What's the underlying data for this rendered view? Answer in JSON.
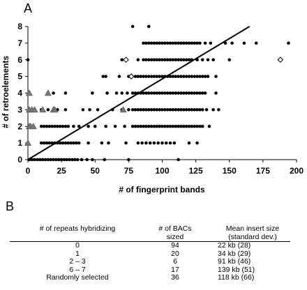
{
  "panel_a_label": "A",
  "panel_b_label": "B",
  "chart_data": {
    "type": "scatter",
    "xlabel": "# of fingerprint bands",
    "ylabel": "# of retroelements",
    "xlim": [
      0,
      200
    ],
    "ylim": [
      0,
      8
    ],
    "xticks": [
      "0",
      "25",
      "50",
      "75",
      "100",
      "125",
      "150",
      "175",
      "200"
    ],
    "yticks": [
      "0",
      "1",
      "2",
      "3",
      "4",
      "5",
      "6",
      "7",
      "8"
    ],
    "grid": false,
    "trendline": {
      "x": [
        0,
        165
      ],
      "y": [
        0,
        8
      ]
    },
    "series": [
      {
        "marker": "circle",
        "points": [
          [
            1,
            0
          ],
          [
            3,
            0
          ],
          [
            5,
            0
          ],
          [
            7,
            0
          ],
          [
            9,
            0
          ],
          [
            11,
            0
          ],
          [
            13,
            0
          ],
          [
            15,
            0
          ],
          [
            17,
            0
          ],
          [
            19,
            0
          ],
          [
            21,
            0
          ],
          [
            23,
            0
          ],
          [
            25,
            0
          ],
          [
            27,
            0
          ],
          [
            29,
            0
          ],
          [
            31,
            0
          ],
          [
            33,
            0
          ],
          [
            35,
            0
          ],
          [
            37,
            0
          ],
          [
            40,
            0
          ],
          [
            44,
            0
          ],
          [
            48,
            0
          ],
          [
            57,
            0
          ],
          [
            75,
            0
          ],
          [
            112,
            0
          ],
          [
            10,
            1
          ],
          [
            12,
            1
          ],
          [
            14,
            1
          ],
          [
            16,
            1
          ],
          [
            18,
            1
          ],
          [
            20,
            1
          ],
          [
            22,
            1
          ],
          [
            24,
            1
          ],
          [
            26,
            1
          ],
          [
            28,
            1
          ],
          [
            30,
            1
          ],
          [
            32,
            1
          ],
          [
            34,
            1
          ],
          [
            36,
            1
          ],
          [
            38,
            1
          ],
          [
            45,
            1
          ],
          [
            55,
            1
          ],
          [
            60,
            1
          ],
          [
            73,
            1
          ],
          [
            82,
            1
          ],
          [
            85,
            1
          ],
          [
            88,
            1
          ],
          [
            91,
            1
          ],
          [
            94,
            1
          ],
          [
            97,
            1
          ],
          [
            100,
            1
          ],
          [
            103,
            1
          ],
          [
            106,
            1
          ],
          [
            109,
            1
          ],
          [
            120,
            1
          ],
          [
            126,
            1
          ],
          [
            10,
            2
          ],
          [
            12,
            2
          ],
          [
            14,
            2
          ],
          [
            16,
            2
          ],
          [
            18,
            2
          ],
          [
            20,
            2
          ],
          [
            22,
            2
          ],
          [
            24,
            2
          ],
          [
            26,
            2
          ],
          [
            28,
            2
          ],
          [
            30,
            2
          ],
          [
            34,
            2
          ],
          [
            38,
            2
          ],
          [
            45,
            2
          ],
          [
            50,
            2
          ],
          [
            58,
            2
          ],
          [
            65,
            2
          ],
          [
            72,
            2
          ],
          [
            78,
            2
          ],
          [
            80,
            2
          ],
          [
            82,
            2
          ],
          [
            84,
            2
          ],
          [
            86,
            2
          ],
          [
            88,
            2
          ],
          [
            90,
            2
          ],
          [
            92,
            2
          ],
          [
            94,
            2
          ],
          [
            96,
            2
          ],
          [
            98,
            2
          ],
          [
            100,
            2
          ],
          [
            102,
            2
          ],
          [
            104,
            2
          ],
          [
            106,
            2
          ],
          [
            108,
            2
          ],
          [
            110,
            2
          ],
          [
            112,
            2
          ],
          [
            114,
            2
          ],
          [
            116,
            2
          ],
          [
            118,
            2
          ],
          [
            120,
            2
          ],
          [
            122,
            2
          ],
          [
            124,
            2
          ],
          [
            126,
            2
          ],
          [
            128,
            2
          ],
          [
            130,
            2
          ],
          [
            135,
            2
          ],
          [
            10,
            3
          ],
          [
            15,
            3
          ],
          [
            22,
            3
          ],
          [
            28,
            3
          ],
          [
            41,
            3
          ],
          [
            46,
            3
          ],
          [
            52,
            3
          ],
          [
            63,
            3
          ],
          [
            70,
            3
          ],
          [
            75,
            3
          ],
          [
            78,
            3
          ],
          [
            80,
            3
          ],
          [
            82,
            3
          ],
          [
            84,
            3
          ],
          [
            86,
            3
          ],
          [
            88,
            3
          ],
          [
            90,
            3
          ],
          [
            92,
            3
          ],
          [
            94,
            3
          ],
          [
            96,
            3
          ],
          [
            98,
            3
          ],
          [
            100,
            3
          ],
          [
            102,
            3
          ],
          [
            104,
            3
          ],
          [
            106,
            3
          ],
          [
            108,
            3
          ],
          [
            110,
            3
          ],
          [
            112,
            3
          ],
          [
            114,
            3
          ],
          [
            116,
            3
          ],
          [
            118,
            3
          ],
          [
            120,
            3
          ],
          [
            122,
            3
          ],
          [
            124,
            3
          ],
          [
            126,
            3
          ],
          [
            128,
            3
          ],
          [
            130,
            3
          ],
          [
            133,
            3
          ],
          [
            138,
            3
          ],
          [
            142,
            3
          ],
          [
            19,
            4
          ],
          [
            28,
            4
          ],
          [
            48,
            4
          ],
          [
            59,
            4
          ],
          [
            66,
            4
          ],
          [
            70,
            4
          ],
          [
            74,
            4
          ],
          [
            78,
            4
          ],
          [
            80,
            4
          ],
          [
            82,
            4
          ],
          [
            84,
            4
          ],
          [
            86,
            4
          ],
          [
            88,
            4
          ],
          [
            90,
            4
          ],
          [
            92,
            4
          ],
          [
            94,
            4
          ],
          [
            96,
            4
          ],
          [
            98,
            4
          ],
          [
            100,
            4
          ],
          [
            102,
            4
          ],
          [
            104,
            4
          ],
          [
            106,
            4
          ],
          [
            108,
            4
          ],
          [
            110,
            4
          ],
          [
            112,
            4
          ],
          [
            114,
            4
          ],
          [
            116,
            4
          ],
          [
            118,
            4
          ],
          [
            120,
            4
          ],
          [
            122,
            4
          ],
          [
            124,
            4
          ],
          [
            126,
            4
          ],
          [
            128,
            4
          ],
          [
            130,
            4
          ],
          [
            132,
            4
          ],
          [
            140,
            4
          ],
          [
            56,
            5
          ],
          [
            58,
            5
          ],
          [
            68,
            5
          ],
          [
            75,
            5
          ],
          [
            80,
            5
          ],
          [
            82,
            5
          ],
          [
            84,
            5
          ],
          [
            86,
            5
          ],
          [
            88,
            5
          ],
          [
            90,
            5
          ],
          [
            92,
            5
          ],
          [
            94,
            5
          ],
          [
            96,
            5
          ],
          [
            98,
            5
          ],
          [
            100,
            5
          ],
          [
            102,
            5
          ],
          [
            104,
            5
          ],
          [
            106,
            5
          ],
          [
            108,
            5
          ],
          [
            110,
            5
          ],
          [
            112,
            5
          ],
          [
            114,
            5
          ],
          [
            116,
            5
          ],
          [
            118,
            5
          ],
          [
            120,
            5
          ],
          [
            122,
            5
          ],
          [
            124,
            5
          ],
          [
            126,
            5
          ],
          [
            128,
            5
          ],
          [
            130,
            5
          ],
          [
            132,
            5
          ],
          [
            134,
            5
          ],
          [
            140,
            5
          ],
          [
            0,
            6
          ],
          [
            70,
            6
          ],
          [
            82,
            6
          ],
          [
            86,
            6
          ],
          [
            88,
            6
          ],
          [
            90,
            6
          ],
          [
            92,
            6
          ],
          [
            94,
            6
          ],
          [
            96,
            6
          ],
          [
            98,
            6
          ],
          [
            100,
            6
          ],
          [
            102,
            6
          ],
          [
            104,
            6
          ],
          [
            106,
            6
          ],
          [
            108,
            6
          ],
          [
            110,
            6
          ],
          [
            112,
            6
          ],
          [
            114,
            6
          ],
          [
            116,
            6
          ],
          [
            118,
            6
          ],
          [
            120,
            6
          ],
          [
            122,
            6
          ],
          [
            126,
            6
          ],
          [
            130,
            6
          ],
          [
            134,
            6
          ],
          [
            138,
            6
          ],
          [
            150,
            6
          ],
          [
            86,
            7
          ],
          [
            88,
            7
          ],
          [
            90,
            7
          ],
          [
            92,
            7
          ],
          [
            94,
            7
          ],
          [
            96,
            7
          ],
          [
            98,
            7
          ],
          [
            100,
            7
          ],
          [
            102,
            7
          ],
          [
            104,
            7
          ],
          [
            106,
            7
          ],
          [
            108,
            7
          ],
          [
            110,
            7
          ],
          [
            112,
            7
          ],
          [
            114,
            7
          ],
          [
            116,
            7
          ],
          [
            118,
            7
          ],
          [
            120,
            7
          ],
          [
            122,
            7
          ],
          [
            124,
            7
          ],
          [
            126,
            7
          ],
          [
            128,
            7
          ],
          [
            132,
            7
          ],
          [
            136,
            7
          ],
          [
            147,
            7
          ],
          [
            152,
            7
          ],
          [
            161,
            7
          ],
          [
            170,
            7
          ],
          [
            194,
            7
          ],
          [
            78,
            8
          ],
          [
            90,
            8
          ]
        ]
      },
      {
        "marker": "triangle",
        "points": [
          [
            0,
            1
          ],
          [
            1,
            2
          ],
          [
            2,
            2
          ],
          [
            4,
            2
          ],
          [
            1,
            3
          ],
          [
            3,
            3
          ],
          [
            5,
            3
          ],
          [
            11,
            3
          ],
          [
            19,
            3
          ],
          [
            20,
            3
          ],
          [
            1,
            4
          ],
          [
            15,
            4
          ],
          [
            71,
            3
          ]
        ]
      },
      {
        "marker": "diamond",
        "points": [
          [
            73,
            6
          ],
          [
            77,
            5
          ],
          [
            188,
            6
          ]
        ]
      }
    ]
  },
  "table": {
    "headers": [
      "# of repeats hybridizing",
      "# of BACs\nsized",
      "Mean insert size\n(standard dev.)"
    ],
    "rows": [
      [
        "0",
        "94",
        "22 kb (28)"
      ],
      [
        "1",
        "20",
        "34 kb (29)"
      ],
      [
        "2 – 3",
        "6",
        "91 kb (46)"
      ],
      [
        "6 – 7",
        "17",
        "139 kb (51)"
      ],
      [
        "Randomly selected",
        "36",
        "118 kb (66)"
      ]
    ]
  }
}
